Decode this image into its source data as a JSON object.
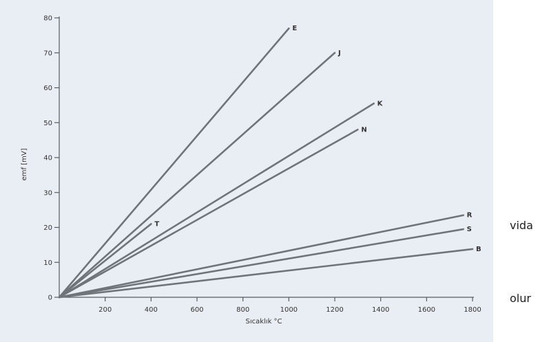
{
  "chart_data": {
    "type": "line",
    "title": "",
    "xlabel": "Sıcaklık °C",
    "ylabel": "emf [mV]",
    "xlim": [
      0,
      1800
    ],
    "ylim": [
      0,
      80
    ],
    "x_ticks": [
      "200",
      "400",
      "600",
      "800",
      "1000",
      "1200",
      "1400",
      "1600",
      "1800"
    ],
    "y_ticks": [
      "0",
      "10",
      "20",
      "30",
      "40",
      "50",
      "60",
      "70",
      "80"
    ],
    "grid": false,
    "legend": "none",
    "line_color": "#6f747a",
    "series": [
      {
        "name": "E",
        "x": [
          0,
          1000
        ],
        "y": [
          0,
          77
        ]
      },
      {
        "name": "J",
        "x": [
          0,
          1200
        ],
        "y": [
          0,
          70
        ]
      },
      {
        "name": "K",
        "x": [
          0,
          1370
        ],
        "y": [
          0,
          55.5
        ]
      },
      {
        "name": "N",
        "x": [
          0,
          1300
        ],
        "y": [
          0,
          48
        ]
      },
      {
        "name": "T",
        "x": [
          0,
          400
        ],
        "y": [
          0,
          21
        ]
      },
      {
        "name": "R",
        "x": [
          0,
          1760
        ],
        "y": [
          0,
          23.5
        ]
      },
      {
        "name": "S",
        "x": [
          0,
          1760
        ],
        "y": [
          0,
          19.5
        ]
      },
      {
        "name": "B",
        "x": [
          0,
          1800
        ],
        "y": [
          0,
          13.8
        ]
      }
    ]
  },
  "side_text": {
    "vida": "vida",
    "olur": "olur"
  }
}
